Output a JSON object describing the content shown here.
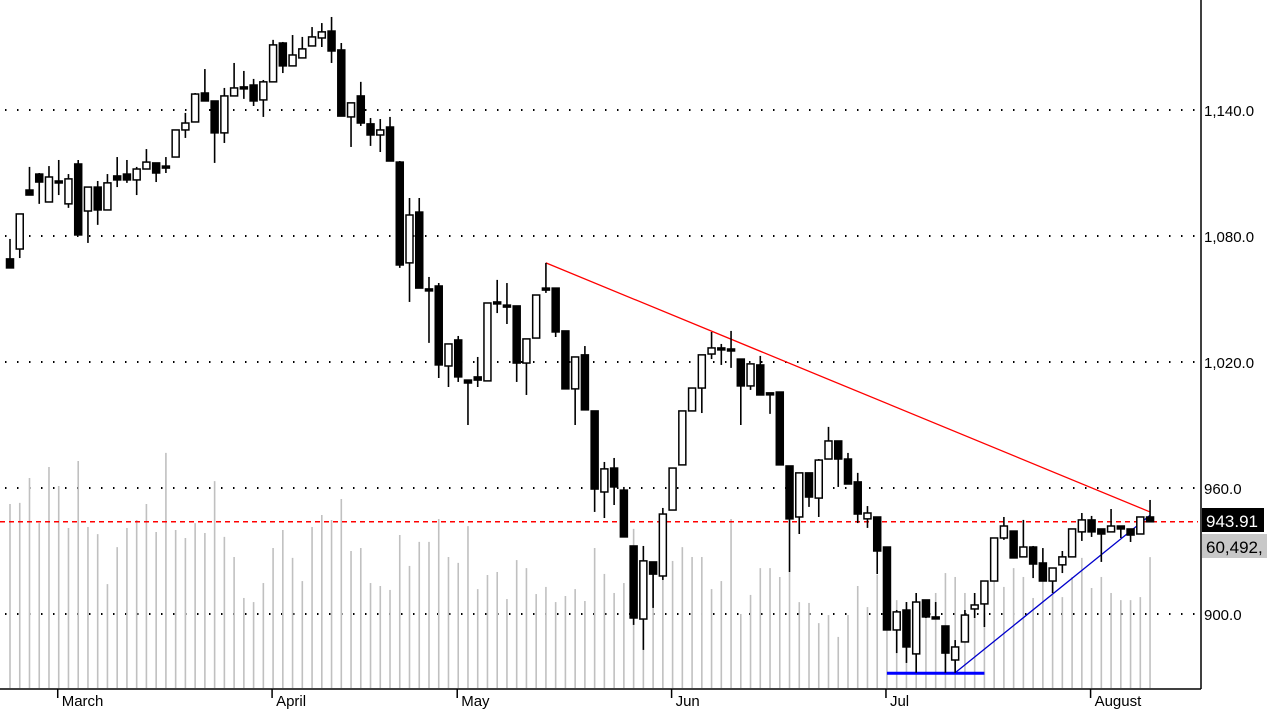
{
  "chart_data": {
    "type": "candlestick",
    "title": "",
    "xlabel": "",
    "ylabel": "",
    "ylim": [
      864,
      1192
    ],
    "y_ticks": [
      {
        "value": 900,
        "label": "900.0"
      },
      {
        "value": 960,
        "label": "960.0"
      },
      {
        "value": 1020,
        "label": "1,020.0"
      },
      {
        "value": 1080,
        "label": "1,080.0"
      },
      {
        "value": 1140,
        "label": "1,140.0"
      }
    ],
    "x_labels": [
      {
        "bar": 5,
        "label": "March"
      },
      {
        "bar": 27,
        "label": "April"
      },
      {
        "bar": 46,
        "label": "May"
      },
      {
        "bar": 68,
        "label": "Jun"
      },
      {
        "bar": 90,
        "label": "Jul"
      },
      {
        "bar": 111,
        "label": "August"
      }
    ],
    "grid": "horizontal dotted",
    "candle_format": [
      "open",
      "high",
      "low",
      "close"
    ],
    "candles": [
      [
        1069.1,
        1078.6,
        1064.8,
        1064.8
      ],
      [
        1073.8,
        1090.5,
        1069.5,
        1090.5
      ],
      [
        1101.9,
        1112.9,
        1099.5,
        1099.5
      ],
      [
        1109.5,
        1110.0,
        1095.3,
        1105.7
      ],
      [
        1096.2,
        1113.3,
        1096.2,
        1108.1
      ],
      [
        1106.2,
        1116.2,
        1099.5,
        1106.0
      ],
      [
        1095.3,
        1109.5,
        1093.4,
        1107.2
      ],
      [
        1114.3,
        1116.2,
        1080.5,
        1080.5
      ],
      [
        1091.9,
        1103.3,
        1076.7,
        1103.3
      ],
      [
        1103.3,
        1106.2,
        1085.3,
        1092.4
      ],
      [
        1092.4,
        1109.5,
        1092.4,
        1105.3
      ],
      [
        1108.6,
        1117.6,
        1103.3,
        1106.7
      ],
      [
        1109.5,
        1116.2,
        1105.3,
        1106.7
      ],
      [
        1106.7,
        1112.9,
        1099.5,
        1111.9
      ],
      [
        1111.9,
        1121.4,
        1111.9,
        1115.2
      ],
      [
        1114.8,
        1114.8,
        1105.7,
        1110.0
      ],
      [
        1113.3,
        1117.6,
        1110.0,
        1113.0
      ],
      [
        1117.6,
        1130.5,
        1117.6,
        1130.5
      ],
      [
        1130.5,
        1138.6,
        1126.7,
        1133.8
      ],
      [
        1134.3,
        1148.1,
        1134.3,
        1147.6
      ],
      [
        1148.1,
        1159.5,
        1144.3,
        1144.3
      ],
      [
        1144.3,
        1144.3,
        1114.8,
        1129.1
      ],
      [
        1129.1,
        1150.5,
        1124.3,
        1146.7
      ],
      [
        1146.7,
        1162.4,
        1146.7,
        1150.5
      ],
      [
        1151.0,
        1158.6,
        1145.3,
        1150.8
      ],
      [
        1151.9,
        1154.8,
        1141.9,
        1144.3
      ],
      [
        1144.8,
        1154.3,
        1136.7,
        1153.4
      ],
      [
        1153.4,
        1173.4,
        1153.4,
        1171.0
      ],
      [
        1171.9,
        1172.4,
        1157.6,
        1161.0
      ],
      [
        1161.0,
        1175.7,
        1161.0,
        1166.2
      ],
      [
        1164.8,
        1174.8,
        1164.8,
        1169.1
      ],
      [
        1170.5,
        1179.5,
        1170.5,
        1174.8
      ],
      [
        1174.3,
        1181.4,
        1170.0,
        1177.2
      ],
      [
        1177.6,
        1184.3,
        1162.4,
        1168.1
      ],
      [
        1168.6,
        1171.9,
        1137.1,
        1137.1
      ],
      [
        1136.7,
        1143.4,
        1122.4,
        1143.4
      ],
      [
        1146.7,
        1153.4,
        1132.4,
        1133.8
      ],
      [
        1133.4,
        1136.2,
        1122.9,
        1128.1
      ],
      [
        1128.1,
        1135.7,
        1120.0,
        1130.5
      ],
      [
        1131.9,
        1136.7,
        1115.7,
        1115.7
      ],
      [
        1115.2,
        1115.7,
        1064.8,
        1066.2
      ],
      [
        1067.2,
        1098.1,
        1048.6,
        1090.0
      ],
      [
        1091.4,
        1098.1,
        1055.2,
        1055.2
      ],
      [
        1054.8,
        1060.5,
        1029.1,
        1054.5
      ],
      [
        1056.2,
        1057.6,
        1012.4,
        1018.6
      ],
      [
        1018.1,
        1028.6,
        1008.1,
        1028.6
      ],
      [
        1030.5,
        1032.4,
        1010.5,
        1012.9
      ],
      [
        1011.4,
        1011.4,
        990.0,
        1010.0
      ],
      [
        1012.9,
        1022.4,
        1008.1,
        1011.4
      ],
      [
        1011.0,
        1048.1,
        1011.0,
        1048.1
      ],
      [
        1048.6,
        1059.1,
        1043.3,
        1048.3
      ],
      [
        1047.1,
        1057.6,
        1038.1,
        1046.9
      ],
      [
        1046.7,
        1046.7,
        1010.5,
        1019.5
      ],
      [
        1019.5,
        1031.0,
        1004.3,
        1031.0
      ],
      [
        1031.4,
        1051.9,
        1031.4,
        1051.9
      ],
      [
        1055.2,
        1067.2,
        1052.9,
        1055.0
      ],
      [
        1055.2,
        1055.2,
        1031.9,
        1034.3
      ],
      [
        1034.8,
        1034.8,
        1007.2,
        1007.2
      ],
      [
        1007.2,
        1022.4,
        990.0,
        1022.4
      ],
      [
        1023.4,
        1027.6,
        997.2,
        997.2
      ],
      [
        996.7,
        996.7,
        948.6,
        959.5
      ],
      [
        958.1,
        972.4,
        945.7,
        969.1
      ],
      [
        969.5,
        974.3,
        951.9,
        960.5
      ],
      [
        959.0,
        960.5,
        936.7,
        936.7
      ],
      [
        932.4,
        932.4,
        894.8,
        898.1
      ],
      [
        897.6,
        932.4,
        882.9,
        925.3
      ],
      [
        924.8,
        924.8,
        902.9,
        919.0
      ],
      [
        918.1,
        950.5,
        916.2,
        947.6
      ],
      [
        949.5,
        969.5,
        949.5,
        969.5
      ],
      [
        971.0,
        996.7,
        971.0,
        996.7
      ],
      [
        996.7,
        1007.6,
        996.7,
        1007.6
      ],
      [
        1007.6,
        1023.4,
        995.7,
        1023.4
      ],
      [
        1023.8,
        1034.3,
        1021.4,
        1026.7
      ],
      [
        1026.7,
        1028.6,
        1018.6,
        1026.5
      ],
      [
        1026.2,
        1034.8,
        1017.2,
        1026.0
      ],
      [
        1021.4,
        1021.4,
        990.0,
        1008.6
      ],
      [
        1008.6,
        1019.1,
        1006.7,
        1019.1
      ],
      [
        1018.6,
        1022.9,
        1004.3,
        1004.3
      ],
      [
        1005.3,
        1005.3,
        995.3,
        1005.0
      ],
      [
        1005.7,
        1005.7,
        971.0,
        971.0
      ],
      [
        970.5,
        970.5,
        920.0,
        945.3
      ],
      [
        946.2,
        967.2,
        938.1,
        967.2
      ],
      [
        967.2,
        967.2,
        951.0,
        955.7
      ],
      [
        955.2,
        973.8,
        946.2,
        973.3
      ],
      [
        973.8,
        989.1,
        973.8,
        982.4
      ],
      [
        982.4,
        982.4,
        960.5,
        973.8
      ],
      [
        973.8,
        976.7,
        961.9,
        961.9
      ],
      [
        962.9,
        967.2,
        943.3,
        947.6
      ],
      [
        945.3,
        951.4,
        941.0,
        948.1
      ],
      [
        946.2,
        946.2,
        919.0,
        930.0
      ],
      [
        931.9,
        931.9,
        892.4,
        892.4
      ],
      [
        892.4,
        901.9,
        881.4,
        901.0
      ],
      [
        901.9,
        905.7,
        876.7,
        884.3
      ],
      [
        881.0,
        910.0,
        872.0,
        905.7
      ],
      [
        906.7,
        906.7,
        898.1,
        898.6
      ],
      [
        898.6,
        905.7,
        898.1,
        898.4
      ],
      [
        894.3,
        894.3,
        872.0,
        881.4
      ],
      [
        878.1,
        887.6,
        872.0,
        884.3
      ],
      [
        886.7,
        901.9,
        886.7,
        899.5
      ],
      [
        902.4,
        910.0,
        898.1,
        904.3
      ],
      [
        904.8,
        915.7,
        893.8,
        915.7
      ],
      [
        915.7,
        936.2,
        915.7,
        936.2
      ],
      [
        936.2,
        946.2,
        935.3,
        941.9
      ],
      [
        939.5,
        939.5,
        926.7,
        926.7
      ],
      [
        927.2,
        944.8,
        927.2,
        931.9
      ],
      [
        931.9,
        932.4,
        917.1,
        923.8
      ],
      [
        924.3,
        931.4,
        915.7,
        915.7
      ],
      [
        915.7,
        921.9,
        910.0,
        921.9
      ],
      [
        923.4,
        930.0,
        919.5,
        927.2
      ],
      [
        927.2,
        940.5,
        927.2,
        940.5
      ],
      [
        939.1,
        948.1,
        934.8,
        944.8
      ],
      [
        944.8,
        946.7,
        936.7,
        939.1
      ],
      [
        940.5,
        940.5,
        924.8,
        938.1
      ],
      [
        939.1,
        950.0,
        939.1,
        941.9
      ],
      [
        941.9,
        941.9,
        936.2,
        940.5
      ],
      [
        940.5,
        940.5,
        934.3,
        937.6
      ],
      [
        938.1,
        946.2,
        938.1,
        946.2
      ],
      [
        946.2,
        954.3,
        944.8,
        943.91
      ]
    ],
    "volume": [
      85000,
      85500,
      97000,
      76200,
      102100,
      93300,
      73900,
      104900,
      74400,
      71100,
      48000,
      65100,
      73900,
      77600,
      85000,
      72100,
      108600,
      73000,
      69300,
      76200,
      71600,
      95600,
      69800,
      60500,
      41600,
      39700,
      48500,
      64700,
      73000,
      60100,
      49400,
      74400,
      79900,
      77600,
      87300,
      63300,
      64700,
      48500,
      47100,
      45300,
      70700,
      56400,
      67500,
      67500,
      78100,
      60500,
      57800,
      74800,
      45700,
      52200,
      53600,
      41100,
      59100,
      55400,
      43400,
      46700,
      39700,
      42500,
      45700,
      40200,
      64700,
      52700,
      43900,
      48500,
      73500,
      45000,
      53100,
      67900,
      58700,
      65100,
      60500,
      60500,
      45700,
      49400,
      78100,
      34200,
      43000,
      55400,
      55400,
      51300,
      53600,
      39700,
      39300,
      30000,
      33700,
      23600,
      33700,
      47100,
      37400,
      52200,
      59000,
      40600,
      39700,
      43900,
      34600,
      43900,
      53100,
      51300,
      43900,
      40600,
      34600,
      51300,
      46700,
      55400,
      51300,
      41600,
      49900,
      47600,
      42000,
      51300,
      60100,
      46200,
      51300,
      43900,
      40600,
      40600,
      42000,
      60492
    ],
    "last_volume_label": "60,492,",
    "last_price_label": "943.91",
    "last_price": 943.91,
    "overlays": {
      "resistance_trendline": {
        "color": "#ff0000",
        "from": {
          "bar": 55,
          "price": 1067.2
        },
        "to": {
          "bar": 117,
          "price": 948.6
        }
      },
      "support_trendline": {
        "color": "#0000cc",
        "from": {
          "bar": 97,
          "price": 872.0
        },
        "to": {
          "bar": 117,
          "price": 947.0
        }
      },
      "support_level": {
        "color": "#0000ff",
        "from_bar": 90,
        "to_bar": 100,
        "price": 871.8
      },
      "last_price_line": {
        "color": "#ff0000",
        "style": "dashed",
        "price": 943.91
      }
    },
    "colors": {
      "up_candle": "#ffffff",
      "down_candle": "#000000",
      "volume": "#c0c0c0",
      "volume_label_bg": "#c8c8c8",
      "price_label_bg": "#000000"
    }
  }
}
